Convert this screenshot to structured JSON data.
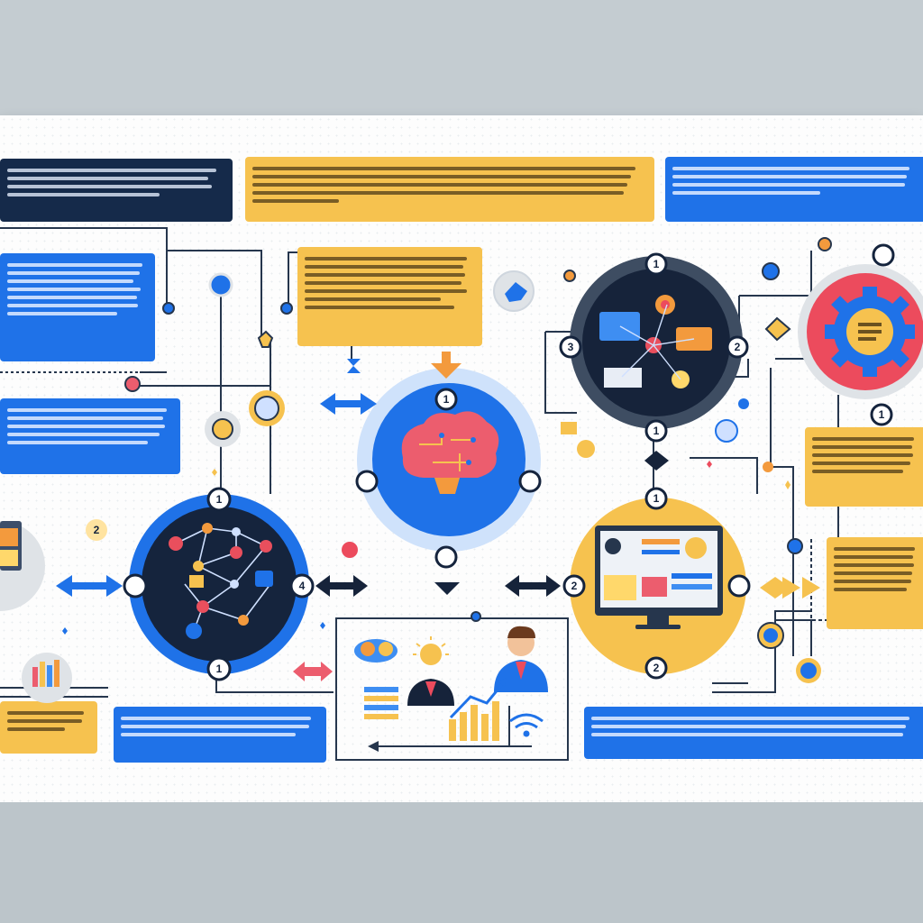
{
  "diagram": {
    "steps": [
      {
        "number": "1"
      },
      {
        "number": "2"
      },
      {
        "number": "3"
      },
      {
        "number": "4"
      }
    ],
    "stage_icons": [
      "network-icon",
      "brain-icon",
      "gear-icon",
      "monitor-icon",
      "person-icon",
      "growth-chart-icon",
      "wifi-icon",
      "lightbulb-icon"
    ],
    "colors": {
      "dark_navy": "#152a4a",
      "brand_blue": "#1f72e8",
      "accent_yellow": "#f6c24f",
      "accent_red": "#ec4b5d",
      "connector": "#26364d"
    }
  }
}
